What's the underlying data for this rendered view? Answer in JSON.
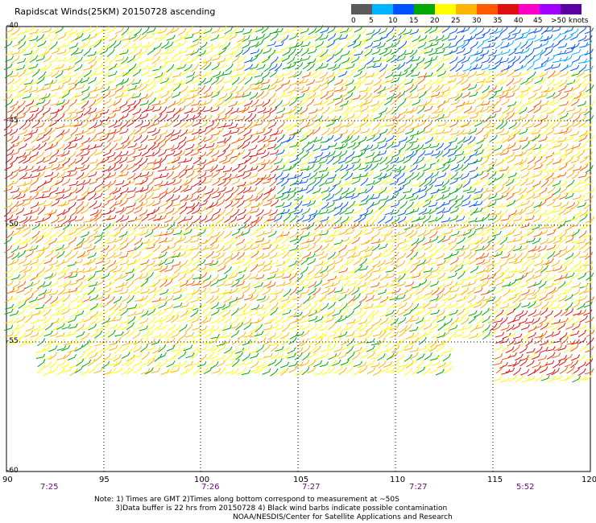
{
  "title": "Rapidscat Winds(25KM) 20150728 ascending",
  "colorbar": {
    "labels": [
      "0",
      "5",
      "10",
      "15",
      "20",
      "25",
      "30",
      "35",
      "40",
      "45",
      ">50 knots"
    ],
    "colors": [
      "#5a5a5a",
      "#00b4ff",
      "#0050ff",
      "#00a800",
      "#ffff00",
      "#ffb400",
      "#ff5a00",
      "#e01010",
      "#ff00c8",
      "#a000ff",
      "#5a00a0"
    ]
  },
  "map": {
    "lon_ticks": [
      "90",
      "95",
      "100",
      "105",
      "110",
      "115",
      "120"
    ],
    "lat_ticks": [
      "-40",
      "-45",
      "-50",
      "-55",
      "-60"
    ],
    "lon_range": [
      90,
      120
    ],
    "lat_range": [
      -40,
      -60
    ],
    "times": [
      "7:25",
      "7:26",
      "7:27",
      "7:27",
      "5:52"
    ]
  },
  "notes": {
    "line1": "Note: 1) Times are GMT 2)Times along bottom correspond to measurement at ~50S",
    "line2": "3)Data buffer is 22 hrs from 20150728 4) Black wind barbs indicate possible contamination",
    "line3": "NOAA/NESDIS/Center for Satellite Applications and Research"
  }
}
